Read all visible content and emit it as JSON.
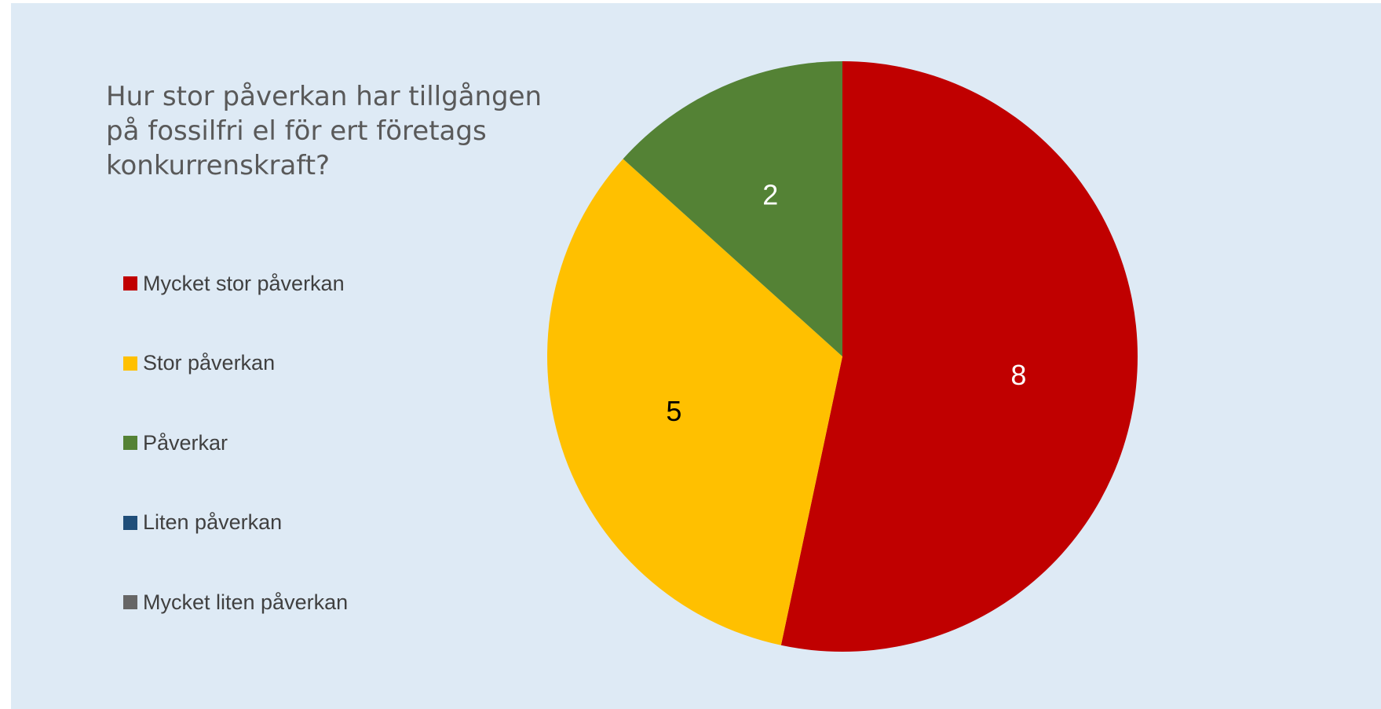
{
  "chart_data": {
    "type": "pie",
    "title": "Hur stor påverkan har tillgången på fossilfri el för ert företags konkurrenskraft?",
    "categories": [
      "Mycket stor påverkan",
      "Stor påverkan",
      "Påverkar",
      "Liten påverkan",
      "Mycket liten påverkan"
    ],
    "values": [
      8,
      5,
      2,
      0,
      0
    ],
    "colors": [
      "#c00000",
      "#ffc000",
      "#548235",
      "#1f4e79",
      "#666666"
    ],
    "label_colors": [
      "#ffffff",
      "#000000",
      "#ffffff",
      "#ffffff",
      "#ffffff"
    ],
    "legend": "left",
    "start_angle_deg": 0,
    "direction": "clockwise"
  }
}
